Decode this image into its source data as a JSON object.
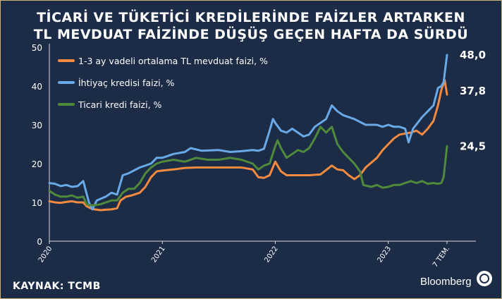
{
  "page": {
    "title_line1": "TİCARİ VE TÜKETİCİ KREDİLERİNDE FAİZLER ARTARKEN",
    "title_line2": "TL MEVDUAT FAİZİNDE DÜŞÜŞ GEÇEN HAFTA DA SÜRDÜ",
    "source": "KAYNAK: TCMB",
    "brand": "Bloomberg"
  },
  "chart_data": {
    "type": "line",
    "ylim": [
      0,
      50
    ],
    "yticks": [
      0,
      10,
      20,
      30,
      40,
      50
    ],
    "xlim": [
      2020.0,
      2023.62
    ],
    "xticks": [
      {
        "label": "2020",
        "x": 2020.0
      },
      {
        "label": "2021",
        "x": 2021.0
      },
      {
        "label": "2022",
        "x": 2022.0
      },
      {
        "label": "2023",
        "x": 2023.0
      },
      {
        "label": "7 TEM.",
        "x": 2023.52
      }
    ],
    "grid": false,
    "legend_position": "top-left",
    "series": [
      {
        "name": "1-3 ay vadeli ortalama TL mevduat faizi, %",
        "color": "#f28a3f",
        "end_label": "37,8",
        "points": [
          [
            2020.0,
            10.3
          ],
          [
            2020.05,
            10.0
          ],
          [
            2020.1,
            9.9
          ],
          [
            2020.15,
            10.1
          ],
          [
            2020.2,
            10.3
          ],
          [
            2020.25,
            10.0
          ],
          [
            2020.3,
            10.0
          ],
          [
            2020.33,
            9.0
          ],
          [
            2020.38,
            8.3
          ],
          [
            2020.45,
            8.0
          ],
          [
            2020.5,
            8.1
          ],
          [
            2020.55,
            8.2
          ],
          [
            2020.6,
            8.5
          ],
          [
            2020.63,
            10.5
          ],
          [
            2020.68,
            11.5
          ],
          [
            2020.73,
            11.8
          ],
          [
            2020.8,
            12.5
          ],
          [
            2020.85,
            14.0
          ],
          [
            2020.9,
            16.5
          ],
          [
            2020.95,
            18.0
          ],
          [
            2021.0,
            18.2
          ],
          [
            2021.1,
            18.5
          ],
          [
            2021.2,
            18.9
          ],
          [
            2021.3,
            19.0
          ],
          [
            2021.4,
            19.0
          ],
          [
            2021.5,
            19.0
          ],
          [
            2021.6,
            19.0
          ],
          [
            2021.7,
            19.0
          ],
          [
            2021.8,
            18.5
          ],
          [
            2021.85,
            16.5
          ],
          [
            2021.9,
            16.3
          ],
          [
            2021.95,
            17.0
          ],
          [
            2022.0,
            20.5
          ],
          [
            2022.05,
            18.0
          ],
          [
            2022.1,
            17.0
          ],
          [
            2022.2,
            17.0
          ],
          [
            2022.3,
            17.0
          ],
          [
            2022.4,
            17.2
          ],
          [
            2022.5,
            19.5
          ],
          [
            2022.55,
            18.5
          ],
          [
            2022.6,
            18.3
          ],
          [
            2022.65,
            17.0
          ],
          [
            2022.7,
            16.0
          ],
          [
            2022.75,
            17.0
          ],
          [
            2022.8,
            19.0
          ],
          [
            2022.9,
            21.5
          ],
          [
            2022.95,
            23.5
          ],
          [
            2023.0,
            25.0
          ],
          [
            2023.05,
            26.5
          ],
          [
            2023.1,
            27.5
          ],
          [
            2023.2,
            28.0
          ],
          [
            2023.25,
            28.5
          ],
          [
            2023.3,
            27.5
          ],
          [
            2023.35,
            29.0
          ],
          [
            2023.4,
            31.0
          ],
          [
            2023.44,
            35.0
          ],
          [
            2023.47,
            39.0
          ],
          [
            2023.5,
            41.5
          ],
          [
            2023.52,
            37.8
          ]
        ]
      },
      {
        "name": "İhtiyaç kredisi faizi, %",
        "color": "#6aa9e8",
        "end_label": "48,0",
        "points": [
          [
            2020.0,
            15.0
          ],
          [
            2020.05,
            14.8
          ],
          [
            2020.1,
            14.2
          ],
          [
            2020.15,
            14.5
          ],
          [
            2020.2,
            14.0
          ],
          [
            2020.25,
            14.2
          ],
          [
            2020.3,
            15.5
          ],
          [
            2020.35,
            10.0
          ],
          [
            2020.38,
            8.2
          ],
          [
            2020.42,
            10.5
          ],
          [
            2020.5,
            11.5
          ],
          [
            2020.55,
            12.5
          ],
          [
            2020.6,
            12.0
          ],
          [
            2020.65,
            17.0
          ],
          [
            2020.7,
            17.5
          ],
          [
            2020.8,
            19.0
          ],
          [
            2020.9,
            20.0
          ],
          [
            2020.95,
            21.5
          ],
          [
            2021.0,
            21.5
          ],
          [
            2021.1,
            22.5
          ],
          [
            2021.2,
            23.0
          ],
          [
            2021.25,
            24.0
          ],
          [
            2021.35,
            23.3
          ],
          [
            2021.5,
            23.5
          ],
          [
            2021.6,
            23.0
          ],
          [
            2021.7,
            23.2
          ],
          [
            2021.8,
            23.5
          ],
          [
            2021.85,
            23.3
          ],
          [
            2021.9,
            23.8
          ],
          [
            2021.95,
            28.5
          ],
          [
            2021.98,
            31.5
          ],
          [
            2022.0,
            30.5
          ],
          [
            2022.05,
            28.5
          ],
          [
            2022.1,
            28.0
          ],
          [
            2022.15,
            29.0
          ],
          [
            2022.2,
            28.0
          ],
          [
            2022.25,
            27.0
          ],
          [
            2022.3,
            27.5
          ],
          [
            2022.35,
            29.5
          ],
          [
            2022.4,
            30.5
          ],
          [
            2022.45,
            31.5
          ],
          [
            2022.5,
            35.0
          ],
          [
            2022.55,
            33.5
          ],
          [
            2022.6,
            32.5
          ],
          [
            2022.7,
            31.5
          ],
          [
            2022.8,
            30.0
          ],
          [
            2022.9,
            30.0
          ],
          [
            2022.95,
            29.5
          ],
          [
            2023.0,
            30.0
          ],
          [
            2023.05,
            29.5
          ],
          [
            2023.1,
            29.5
          ],
          [
            2023.15,
            29.0
          ],
          [
            2023.18,
            25.5
          ],
          [
            2023.22,
            29.0
          ],
          [
            2023.3,
            32.0
          ],
          [
            2023.35,
            33.5
          ],
          [
            2023.4,
            35.0
          ],
          [
            2023.44,
            39.5
          ],
          [
            2023.47,
            40.0
          ],
          [
            2023.49,
            41.0
          ],
          [
            2023.52,
            48.0
          ]
        ]
      },
      {
        "name": "Ticari kredi faizi, %",
        "color": "#4f8a3c",
        "end_label": "24,5",
        "points": [
          [
            2020.0,
            13.0
          ],
          [
            2020.05,
            12.0
          ],
          [
            2020.1,
            11.5
          ],
          [
            2020.15,
            11.5
          ],
          [
            2020.2,
            11.8
          ],
          [
            2020.25,
            11.2
          ],
          [
            2020.3,
            11.5
          ],
          [
            2020.33,
            9.5
          ],
          [
            2020.38,
            9.2
          ],
          [
            2020.45,
            9.5
          ],
          [
            2020.5,
            10.0
          ],
          [
            2020.55,
            10.5
          ],
          [
            2020.6,
            10.5
          ],
          [
            2020.65,
            12.5
          ],
          [
            2020.7,
            13.5
          ],
          [
            2020.75,
            13.5
          ],
          [
            2020.8,
            15.0
          ],
          [
            2020.85,
            17.5
          ],
          [
            2020.9,
            19.0
          ],
          [
            2020.95,
            20.0
          ],
          [
            2021.0,
            20.5
          ],
          [
            2021.1,
            21.0
          ],
          [
            2021.2,
            20.5
          ],
          [
            2021.3,
            21.5
          ],
          [
            2021.4,
            21.0
          ],
          [
            2021.5,
            21.0
          ],
          [
            2021.6,
            21.5
          ],
          [
            2021.7,
            21.0
          ],
          [
            2021.8,
            20.0
          ],
          [
            2021.85,
            18.5
          ],
          [
            2021.9,
            19.5
          ],
          [
            2021.95,
            20.0
          ],
          [
            2022.0,
            24.5
          ],
          [
            2022.02,
            26.0
          ],
          [
            2022.05,
            24.0
          ],
          [
            2022.1,
            21.5
          ],
          [
            2022.15,
            22.5
          ],
          [
            2022.2,
            23.5
          ],
          [
            2022.25,
            23.0
          ],
          [
            2022.3,
            24.0
          ],
          [
            2022.35,
            26.5
          ],
          [
            2022.4,
            29.5
          ],
          [
            2022.45,
            28.0
          ],
          [
            2022.5,
            29.5
          ],
          [
            2022.55,
            25.0
          ],
          [
            2022.6,
            23.0
          ],
          [
            2022.65,
            21.5
          ],
          [
            2022.7,
            20.0
          ],
          [
            2022.75,
            18.0
          ],
          [
            2022.78,
            14.5
          ],
          [
            2022.85,
            14.0
          ],
          [
            2022.9,
            14.5
          ],
          [
            2022.95,
            13.8
          ],
          [
            2023.0,
            14.0
          ],
          [
            2023.05,
            14.5
          ],
          [
            2023.1,
            14.5
          ],
          [
            2023.15,
            15.0
          ],
          [
            2023.2,
            15.5
          ],
          [
            2023.25,
            15.0
          ],
          [
            2023.3,
            15.5
          ],
          [
            2023.35,
            14.8
          ],
          [
            2023.4,
            15.0
          ],
          [
            2023.44,
            14.8
          ],
          [
            2023.47,
            15.0
          ],
          [
            2023.49,
            16.5
          ],
          [
            2023.52,
            24.5
          ]
        ]
      }
    ]
  }
}
